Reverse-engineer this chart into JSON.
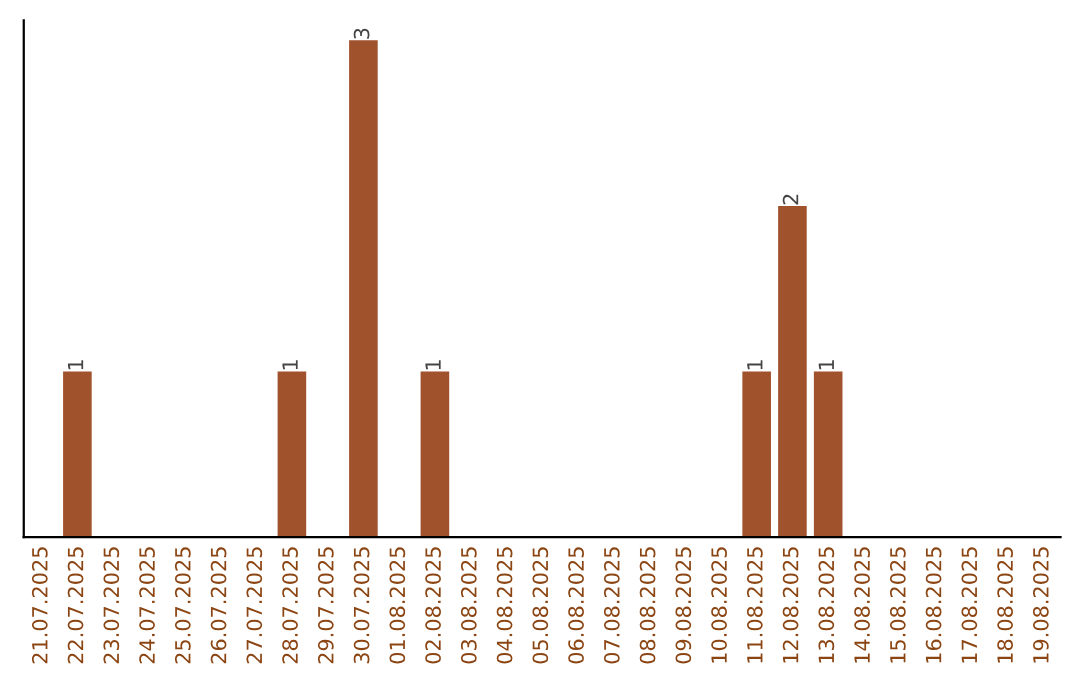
{
  "chart_data": {
    "type": "bar",
    "categories": [
      "21.07.2025",
      "22.07.2025",
      "23.07.2025",
      "24.07.2025",
      "25.07.2025",
      "26.07.2025",
      "27.07.2025",
      "28.07.2025",
      "29.07.2025",
      "30.07.2025",
      "01.08.2025",
      "02.08.2025",
      "03.08.2025",
      "04.08.2025",
      "05.08.2025",
      "06.08.2025",
      "07.08.2025",
      "08.08.2025",
      "09.08.2025",
      "10.08.2025",
      "11.08.2025",
      "12.08.2025",
      "13.08.2025",
      "14.08.2025",
      "15.08.2025",
      "16.08.2025",
      "17.08.2025",
      "18.08.2025",
      "19.08.2025"
    ],
    "values": [
      0,
      1,
      0,
      0,
      0,
      0,
      0,
      1,
      0,
      3,
      0,
      1,
      0,
      0,
      0,
      0,
      0,
      0,
      0,
      0,
      1,
      2,
      1,
      0,
      0,
      0,
      0,
      0,
      0
    ],
    "color": "#a0522d",
    "value_labels": [
      null,
      "1",
      null,
      null,
      null,
      null,
      null,
      "1",
      null,
      "3",
      null,
      "1",
      null,
      null,
      null,
      null,
      null,
      null,
      null,
      null,
      "1",
      "2",
      "1",
      null,
      null,
      null,
      null,
      null,
      null
    ],
    "tick_labels": "x",
    "grid": false,
    "legend": false
  }
}
